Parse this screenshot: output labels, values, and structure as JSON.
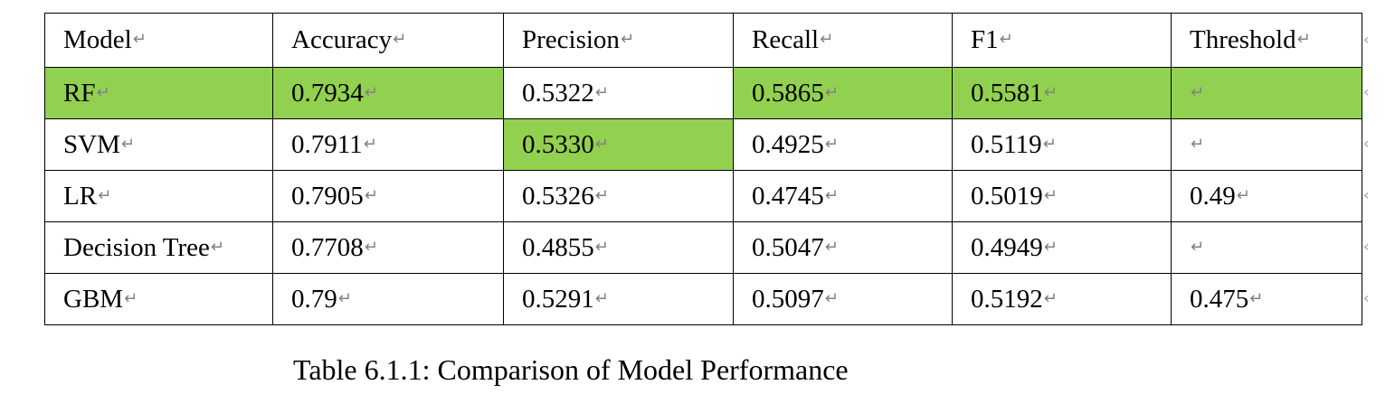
{
  "paragraph_mark": "↵",
  "highlight_color": "#92d050",
  "table": {
    "header": [
      "Model",
      "Accuracy",
      "Precision",
      "Recall",
      "F1",
      "Threshold"
    ],
    "rows": [
      [
        "RF",
        "0.7934",
        "0.5322",
        "0.5865",
        "0.5581",
        ""
      ],
      [
        "SVM",
        "0.7911",
        "0.5330",
        "0.4925",
        "0.5119",
        ""
      ],
      [
        "LR",
        "0.7905",
        "0.5326",
        "0.4745",
        "0.5019",
        "0.49"
      ],
      [
        "Decision Tree",
        "0.7708",
        "0.4855",
        "0.5047",
        "0.4949",
        ""
      ],
      [
        "GBM",
        "0.79",
        "0.5291",
        "0.5097",
        "0.5192",
        "0.475"
      ]
    ],
    "highlighted_cells": [
      {
        "row": 0,
        "col": 0
      },
      {
        "row": 0,
        "col": 1
      },
      {
        "row": 0,
        "col": 3
      },
      {
        "row": 0,
        "col": 4
      },
      {
        "row": 0,
        "col": 5
      },
      {
        "row": 1,
        "col": 2
      }
    ]
  },
  "caption": "Table 6.1.1: Comparison of Model Performance"
}
